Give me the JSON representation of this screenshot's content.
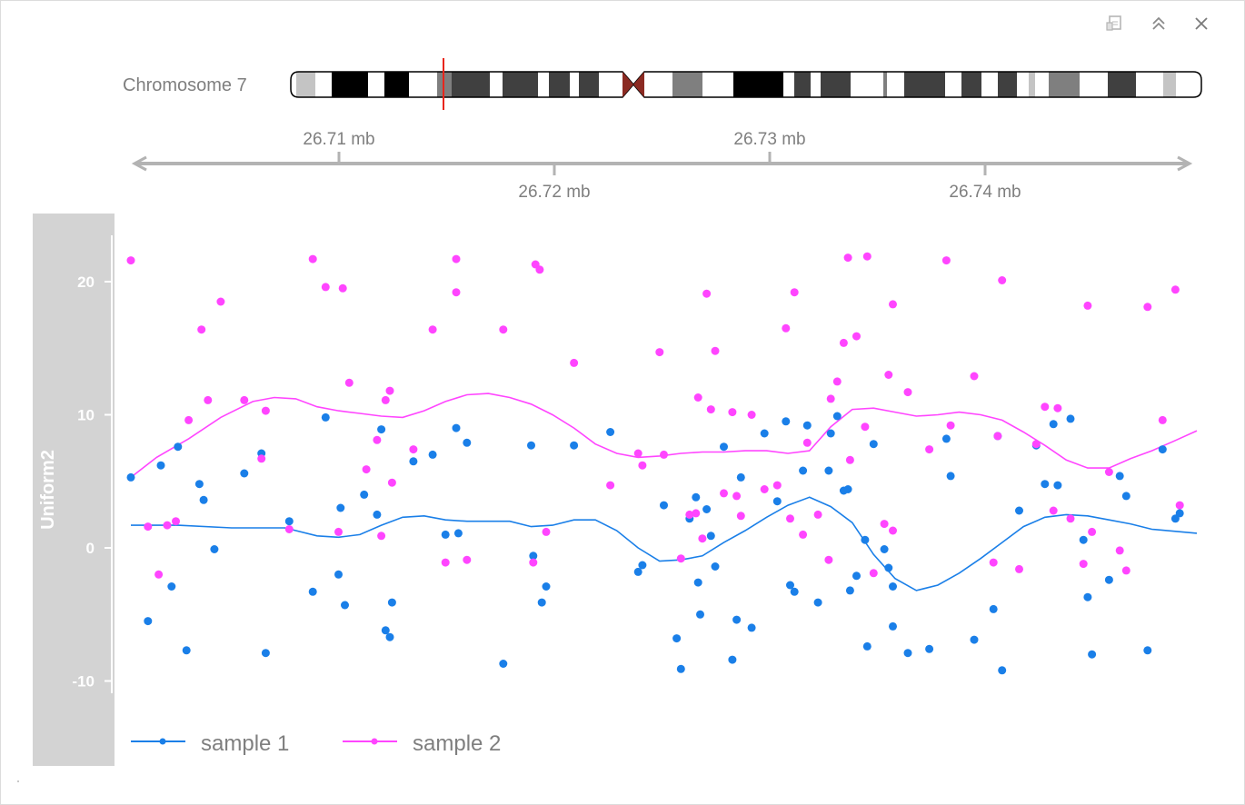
{
  "window": {
    "buttons": [
      {
        "name": "export-icon"
      },
      {
        "name": "collapse-icon"
      },
      {
        "name": "close-icon"
      }
    ]
  },
  "ideogram": {
    "label": "Chromosome 7",
    "highlight_color": "#e8251b",
    "centromere_color": "#8b2a22"
  },
  "genome_axis": {
    "ticks_top": [
      "26.71 mb",
      "26.73 mb"
    ],
    "ticks_bottom": [
      "26.72 mb",
      "26.74 mb"
    ]
  },
  "track": {
    "title": "Uniform2",
    "panel_color": "#d3d3d3",
    "y_ticks": [
      "20",
      "10",
      "0",
      "-10"
    ]
  },
  "colors": {
    "sample1": "#1a7fe8",
    "sample2": "#ff45ff"
  },
  "chart_data": {
    "type": "scatter",
    "ylabel": "Uniform2",
    "ylim": [
      -16,
      24
    ],
    "xlim": [
      26.7053,
      26.7551
    ],
    "x_unit": "mb",
    "legend_position": "bottom-left",
    "series": [
      {
        "name": "sample 1",
        "color": "#1a7fe8",
        "points": [
          [
            26.7053,
            5.3
          ],
          [
            26.7061,
            -5.5
          ],
          [
            26.7067,
            6.2
          ],
          [
            26.7072,
            -2.9
          ],
          [
            26.7075,
            7.6
          ],
          [
            26.7079,
            -7.7
          ],
          [
            26.7085,
            4.8
          ],
          [
            26.7087,
            3.6
          ],
          [
            26.7092,
            -0.1
          ],
          [
            26.7106,
            5.6
          ],
          [
            26.7114,
            7.1
          ],
          [
            26.7116,
            -7.9
          ],
          [
            26.7127,
            2.0
          ],
          [
            26.7138,
            -3.3
          ],
          [
            26.7144,
            9.8
          ],
          [
            26.715,
            -2.0
          ],
          [
            26.7151,
            3.0
          ],
          [
            26.7153,
            -4.3
          ],
          [
            26.7162,
            4.0
          ],
          [
            26.7168,
            2.5
          ],
          [
            26.717,
            8.9
          ],
          [
            26.7172,
            -6.2
          ],
          [
            26.7174,
            -6.7
          ],
          [
            26.7175,
            -4.1
          ],
          [
            26.7185,
            6.5
          ],
          [
            26.7194,
            7.0
          ],
          [
            26.72,
            1.0
          ],
          [
            26.7205,
            9.0
          ],
          [
            26.7206,
            1.1
          ],
          [
            26.721,
            7.9
          ],
          [
            26.7227,
            -8.7
          ],
          [
            26.724,
            7.7
          ],
          [
            26.7241,
            -0.6
          ],
          [
            26.7245,
            -4.1
          ],
          [
            26.7247,
            -2.9
          ],
          [
            26.726,
            7.7
          ],
          [
            26.7277,
            8.7
          ],
          [
            26.729,
            -1.8
          ],
          [
            26.7292,
            -1.3
          ],
          [
            26.7302,
            3.2
          ],
          [
            26.7308,
            -6.8
          ],
          [
            26.731,
            -9.1
          ],
          [
            26.7314,
            2.2
          ],
          [
            26.7317,
            3.8
          ],
          [
            26.7318,
            -2.6
          ],
          [
            26.7319,
            -5.0
          ],
          [
            26.7322,
            2.9
          ],
          [
            26.7324,
            0.9
          ],
          [
            26.7326,
            -1.4
          ],
          [
            26.733,
            7.6
          ],
          [
            26.7334,
            -8.4
          ],
          [
            26.7336,
            -5.4
          ],
          [
            26.7338,
            5.3
          ],
          [
            26.7343,
            -6.0
          ],
          [
            26.7349,
            8.6
          ],
          [
            26.7355,
            3.5
          ],
          [
            26.7359,
            9.5
          ],
          [
            26.7361,
            -2.8
          ],
          [
            26.7363,
            -3.3
          ],
          [
            26.7367,
            5.8
          ],
          [
            26.7369,
            9.2
          ],
          [
            26.7374,
            -4.1
          ],
          [
            26.7379,
            5.8
          ],
          [
            26.738,
            8.6
          ],
          [
            26.7383,
            9.9
          ],
          [
            26.7386,
            4.3
          ],
          [
            26.7388,
            4.4
          ],
          [
            26.7389,
            -3.2
          ],
          [
            26.7392,
            -2.1
          ],
          [
            26.7396,
            0.6
          ],
          [
            26.7397,
            -7.4
          ],
          [
            26.74,
            7.8
          ],
          [
            26.7405,
            -0.1
          ],
          [
            26.7407,
            -1.5
          ],
          [
            26.7409,
            -2.9
          ],
          [
            26.7409,
            -5.9
          ],
          [
            26.7416,
            -7.9
          ],
          [
            26.7426,
            -7.6
          ],
          [
            26.7434,
            8.2
          ],
          [
            26.7436,
            5.4
          ],
          [
            26.7447,
            -6.9
          ],
          [
            26.7456,
            -4.6
          ],
          [
            26.7458,
            8.4
          ],
          [
            26.746,
            -9.2
          ],
          [
            26.7468,
            2.8
          ],
          [
            26.7476,
            7.7
          ],
          [
            26.748,
            4.8
          ],
          [
            26.7484,
            9.3
          ],
          [
            26.7486,
            4.7
          ],
          [
            26.7492,
            9.7
          ],
          [
            26.7498,
            0.6
          ],
          [
            26.75,
            -3.7
          ],
          [
            26.7502,
            -8.0
          ],
          [
            26.751,
            -2.4
          ],
          [
            26.7515,
            5.4
          ],
          [
            26.7518,
            3.9
          ],
          [
            26.7528,
            -7.7
          ],
          [
            26.7535,
            7.4
          ],
          [
            26.7541,
            2.2
          ],
          [
            26.7543,
            2.6
          ]
        ],
        "smooth": [
          [
            26.7053,
            1.7
          ],
          [
            26.7075,
            1.7
          ],
          [
            26.71,
            1.5
          ],
          [
            26.7125,
            1.5
          ],
          [
            26.714,
            0.9
          ],
          [
            26.715,
            0.8
          ],
          [
            26.716,
            1.0
          ],
          [
            26.717,
            1.7
          ],
          [
            26.718,
            2.3
          ],
          [
            26.719,
            2.4
          ],
          [
            26.72,
            2.1
          ],
          [
            26.721,
            2.0
          ],
          [
            26.722,
            2.0
          ],
          [
            26.723,
            2.0
          ],
          [
            26.724,
            1.6
          ],
          [
            26.725,
            1.7
          ],
          [
            26.726,
            2.1
          ],
          [
            26.727,
            2.1
          ],
          [
            26.728,
            1.3
          ],
          [
            26.729,
            0.0
          ],
          [
            26.73,
            -1.0
          ],
          [
            26.731,
            -0.9
          ],
          [
            26.732,
            -0.6
          ],
          [
            26.733,
            0.4
          ],
          [
            26.734,
            1.3
          ],
          [
            26.735,
            2.3
          ],
          [
            26.736,
            3.2
          ],
          [
            26.737,
            3.8
          ],
          [
            26.738,
            3.1
          ],
          [
            26.739,
            1.9
          ],
          [
            26.74,
            -0.5
          ],
          [
            26.741,
            -2.3
          ],
          [
            26.742,
            -3.2
          ],
          [
            26.743,
            -2.8
          ],
          [
            26.744,
            -1.9
          ],
          [
            26.745,
            -0.8
          ],
          [
            26.746,
            0.4
          ],
          [
            26.747,
            1.6
          ],
          [
            26.748,
            2.3
          ],
          [
            26.749,
            2.5
          ],
          [
            26.75,
            2.4
          ],
          [
            26.751,
            2.1
          ],
          [
            26.752,
            1.8
          ],
          [
            26.753,
            1.4
          ],
          [
            26.7551,
            1.1
          ]
        ]
      },
      {
        "name": "sample 2",
        "color": "#ff45ff",
        "points": [
          [
            26.7053,
            21.6
          ],
          [
            26.7061,
            1.6
          ],
          [
            26.7066,
            -2.0
          ],
          [
            26.707,
            1.7
          ],
          [
            26.7074,
            2.0
          ],
          [
            26.708,
            9.6
          ],
          [
            26.7086,
            16.4
          ],
          [
            26.7089,
            11.1
          ],
          [
            26.7095,
            18.5
          ],
          [
            26.7106,
            11.1
          ],
          [
            26.7114,
            6.7
          ],
          [
            26.7116,
            10.3
          ],
          [
            26.7127,
            1.4
          ],
          [
            26.7138,
            21.7
          ],
          [
            26.7144,
            19.6
          ],
          [
            26.715,
            1.2
          ],
          [
            26.7152,
            19.5
          ],
          [
            26.7155,
            12.4
          ],
          [
            26.7163,
            5.9
          ],
          [
            26.7168,
            8.1
          ],
          [
            26.717,
            0.9
          ],
          [
            26.7172,
            11.1
          ],
          [
            26.7174,
            11.8
          ],
          [
            26.7175,
            4.9
          ],
          [
            26.7185,
            7.4
          ],
          [
            26.7194,
            16.4
          ],
          [
            26.72,
            -1.1
          ],
          [
            26.7205,
            21.7
          ],
          [
            26.7205,
            19.2
          ],
          [
            26.721,
            -0.9
          ],
          [
            26.7227,
            16.4
          ],
          [
            26.7241,
            -1.1
          ],
          [
            26.7242,
            21.3
          ],
          [
            26.7244,
            20.9
          ],
          [
            26.7247,
            1.2
          ],
          [
            26.726,
            13.9
          ],
          [
            26.7277,
            4.7
          ],
          [
            26.729,
            7.1
          ],
          [
            26.7292,
            6.2
          ],
          [
            26.73,
            14.7
          ],
          [
            26.7302,
            7.0
          ],
          [
            26.731,
            -0.8
          ],
          [
            26.7314,
            2.5
          ],
          [
            26.7317,
            2.6
          ],
          [
            26.7318,
            11.3
          ],
          [
            26.732,
            0.7
          ],
          [
            26.7322,
            19.1
          ],
          [
            26.7324,
            10.4
          ],
          [
            26.7326,
            14.8
          ],
          [
            26.733,
            4.1
          ],
          [
            26.7334,
            10.2
          ],
          [
            26.7336,
            3.9
          ],
          [
            26.7338,
            2.4
          ],
          [
            26.7343,
            10.0
          ],
          [
            26.7349,
            4.4
          ],
          [
            26.7355,
            4.7
          ],
          [
            26.7359,
            16.5
          ],
          [
            26.7361,
            2.2
          ],
          [
            26.7363,
            19.2
          ],
          [
            26.7367,
            1.0
          ],
          [
            26.7369,
            7.9
          ],
          [
            26.7374,
            2.5
          ],
          [
            26.7379,
            -0.9
          ],
          [
            26.738,
            11.2
          ],
          [
            26.7383,
            12.5
          ],
          [
            26.7386,
            15.4
          ],
          [
            26.7388,
            21.8
          ],
          [
            26.7389,
            6.6
          ],
          [
            26.7392,
            15.9
          ],
          [
            26.7396,
            9.1
          ],
          [
            26.7397,
            21.9
          ],
          [
            26.74,
            -1.9
          ],
          [
            26.7405,
            1.8
          ],
          [
            26.7407,
            13.0
          ],
          [
            26.7409,
            18.3
          ],
          [
            26.7409,
            1.3
          ],
          [
            26.7416,
            11.7
          ],
          [
            26.7426,
            7.4
          ],
          [
            26.7434,
            21.6
          ],
          [
            26.7436,
            9.2
          ],
          [
            26.7447,
            12.9
          ],
          [
            26.7456,
            -1.1
          ],
          [
            26.7458,
            8.4
          ],
          [
            26.746,
            20.1
          ],
          [
            26.7468,
            -1.6
          ],
          [
            26.7476,
            7.8
          ],
          [
            26.748,
            10.6
          ],
          [
            26.7484,
            2.8
          ],
          [
            26.7486,
            10.5
          ],
          [
            26.7492,
            2.2
          ],
          [
            26.7498,
            -1.2
          ],
          [
            26.75,
            18.2
          ],
          [
            26.7502,
            1.2
          ],
          [
            26.751,
            5.7
          ],
          [
            26.7515,
            -0.2
          ],
          [
            26.7518,
            -1.7
          ],
          [
            26.7528,
            18.1
          ],
          [
            26.7535,
            9.6
          ],
          [
            26.7541,
            19.4
          ],
          [
            26.7543,
            3.2
          ]
        ],
        "smooth": [
          [
            26.7053,
            5.3
          ],
          [
            26.7065,
            6.8
          ],
          [
            26.708,
            8.2
          ],
          [
            26.7095,
            9.8
          ],
          [
            26.711,
            11.0
          ],
          [
            26.712,
            11.3
          ],
          [
            26.713,
            11.2
          ],
          [
            26.714,
            10.6
          ],
          [
            26.715,
            10.3
          ],
          [
            26.716,
            10.1
          ],
          [
            26.717,
            9.9
          ],
          [
            26.718,
            9.8
          ],
          [
            26.719,
            10.3
          ],
          [
            26.72,
            11.0
          ],
          [
            26.721,
            11.5
          ],
          [
            26.722,
            11.6
          ],
          [
            26.723,
            11.3
          ],
          [
            26.724,
            10.8
          ],
          [
            26.725,
            10.0
          ],
          [
            26.726,
            9.0
          ],
          [
            26.727,
            7.8
          ],
          [
            26.728,
            7.1
          ],
          [
            26.729,
            6.8
          ],
          [
            26.73,
            6.9
          ],
          [
            26.731,
            7.1
          ],
          [
            26.732,
            7.2
          ],
          [
            26.733,
            7.2
          ],
          [
            26.734,
            7.3
          ],
          [
            26.735,
            7.3
          ],
          [
            26.736,
            7.1
          ],
          [
            26.737,
            7.3
          ],
          [
            26.738,
            9.1
          ],
          [
            26.739,
            10.4
          ],
          [
            26.74,
            10.5
          ],
          [
            26.741,
            10.2
          ],
          [
            26.742,
            9.9
          ],
          [
            26.743,
            10.0
          ],
          [
            26.744,
            10.2
          ],
          [
            26.745,
            10.0
          ],
          [
            26.746,
            9.6
          ],
          [
            26.747,
            8.7
          ],
          [
            26.748,
            7.7
          ],
          [
            26.749,
            6.6
          ],
          [
            26.75,
            6.0
          ],
          [
            26.751,
            6.0
          ],
          [
            26.752,
            6.7
          ],
          [
            26.753,
            7.3
          ],
          [
            26.754,
            8.0
          ],
          [
            26.7551,
            8.8
          ]
        ]
      }
    ]
  }
}
